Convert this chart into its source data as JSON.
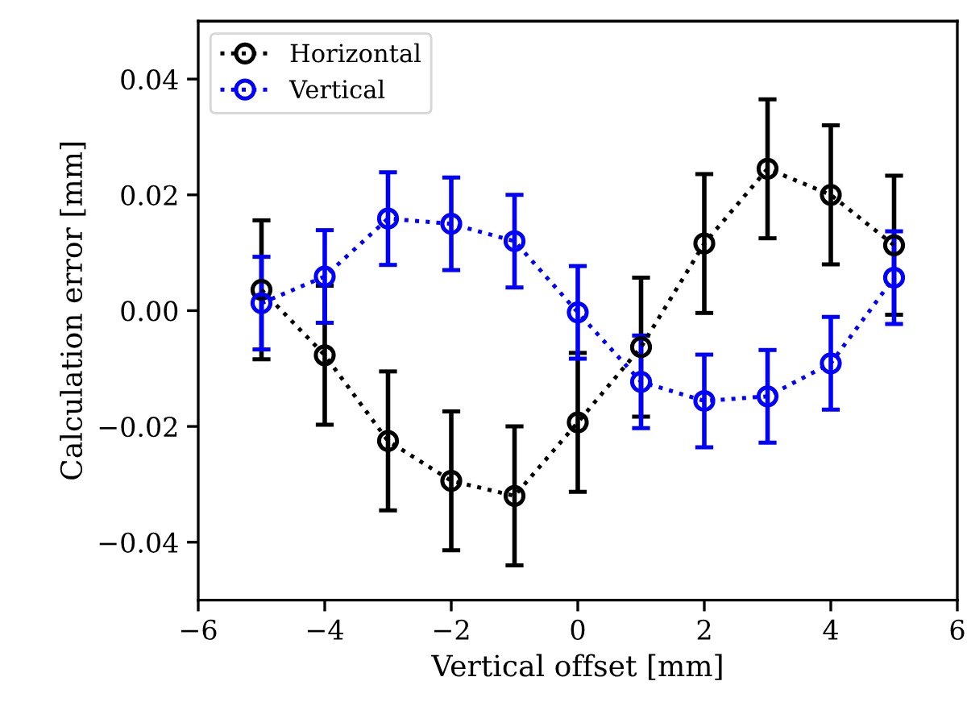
{
  "chart_data": {
    "type": "line",
    "xlabel": "Vertical offset [mm]",
    "ylabel": "Calculation error [mm]",
    "x": [
      -5,
      -4,
      -3,
      -2,
      -1,
      0,
      1,
      2,
      3,
      4,
      5
    ],
    "series": [
      {
        "name": "Horizontal",
        "color": "#000000",
        "values": [
          0.0036,
          -0.0077,
          -0.0225,
          -0.0294,
          -0.032,
          -0.0193,
          -0.0063,
          0.0116,
          0.0245,
          0.02,
          0.0113
        ],
        "errors": [
          0.012,
          0.012,
          0.012,
          0.012,
          0.012,
          0.012,
          0.012,
          0.012,
          0.012,
          0.012,
          0.012
        ]
      },
      {
        "name": "Vertical",
        "color": "#0000ff",
        "values": [
          0.0013,
          0.0059,
          0.0159,
          0.015,
          0.012,
          -0.0003,
          -0.0123,
          -0.0156,
          -0.0148,
          -0.0091,
          0.0057
        ],
        "errors": [
          0.008,
          0.008,
          0.008,
          0.008,
          0.008,
          0.008,
          0.008,
          0.008,
          0.008,
          0.008,
          0.008
        ]
      }
    ],
    "xlim": [
      -6,
      6
    ],
    "xticks": [
      {
        "value": -6,
        "label": "−6"
      },
      {
        "value": -4,
        "label": "−4"
      },
      {
        "value": -2,
        "label": "−2"
      },
      0,
      2,
      4,
      6
    ],
    "ylim": [
      -0.05,
      0.05
    ],
    "yticks": [
      {
        "value": -0.04,
        "label": "−0.04"
      },
      {
        "value": -0.02,
        "label": "−0.02"
      },
      {
        "value": 0,
        "label": "0.00"
      },
      {
        "value": 0.02,
        "label": "0.02"
      },
      {
        "value": 0.04,
        "label": "0.04"
      }
    ],
    "marker": "circle",
    "line_style": "dotted",
    "legend": "top left",
    "grid": false
  }
}
